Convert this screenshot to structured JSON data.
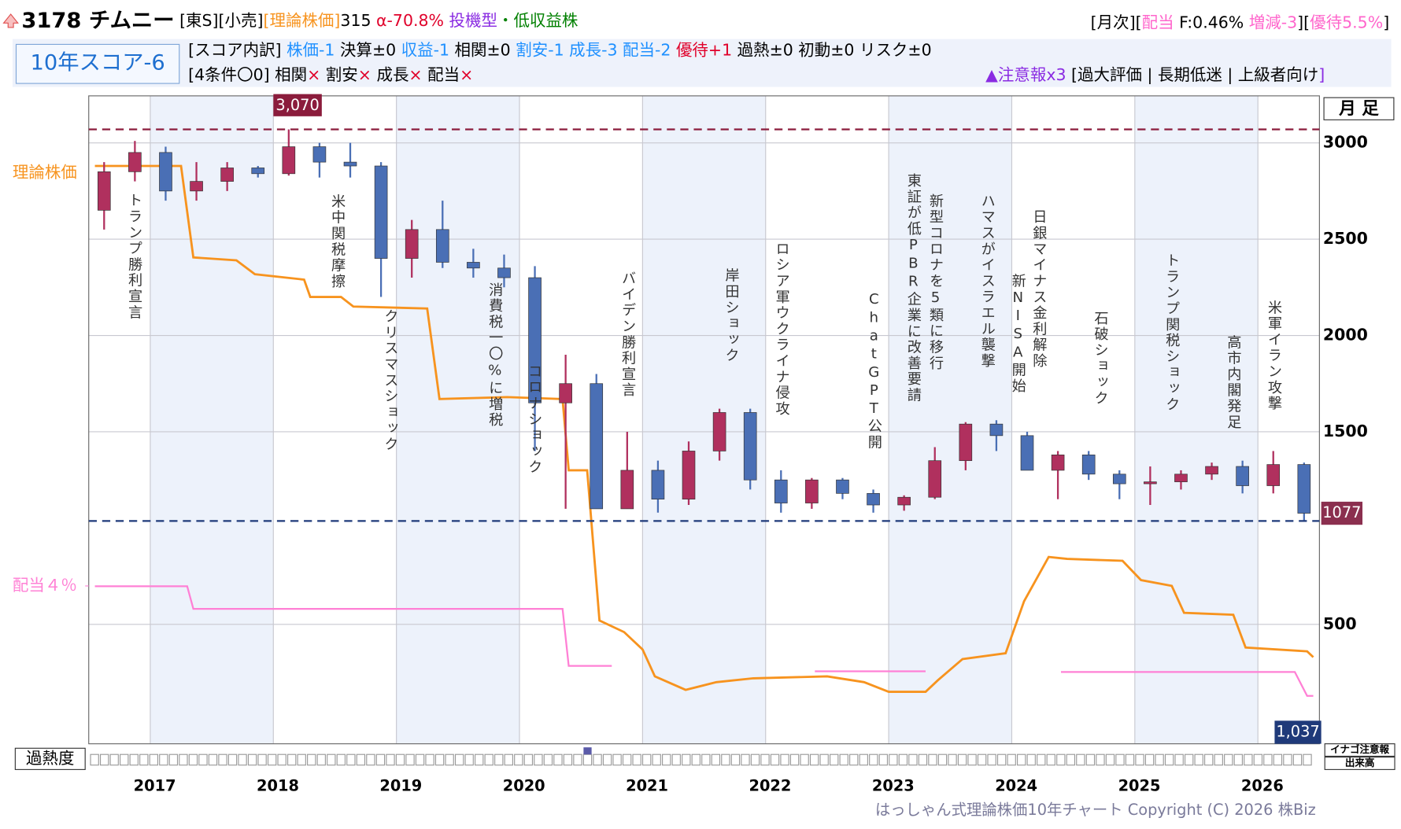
{
  "header": {
    "line1_left": [
      {
        "text": "3178 チムニー",
        "color": "#000000",
        "size": 24,
        "bold": true
      },
      {
        "text": " [東S][小売]",
        "color": "#000000",
        "size": 18
      },
      {
        "text": "[理論株価]",
        "color": "#f7931e",
        "size": 18
      },
      {
        "text": "315 ",
        "color": "#000000",
        "size": 18
      },
      {
        "text": "α-70.8% ",
        "color": "#e0002a",
        "size": 18
      },
      {
        "text": "投機型",
        "color": "#8a2be2",
        "size": 18
      },
      {
        "text": "・低収益株",
        "color": "#008000",
        "size": 18
      }
    ],
    "line1_right": [
      {
        "text": "[月次][",
        "color": "#000000",
        "size": 18
      },
      {
        "text": "配当",
        "color": "#ff66cc",
        "size": 18
      },
      {
        "text": " F:0.46% ",
        "color": "#000000",
        "size": 18
      },
      {
        "text": "増減-3",
        "color": "#ff66cc",
        "size": 18
      },
      {
        "text": "][",
        "color": "#000000",
        "size": 18
      },
      {
        "text": "優待5.5%",
        "color": "#ff66cc",
        "size": 18
      },
      {
        "text": "]",
        "color": "#000000",
        "size": 18
      }
    ],
    "score": "10年スコア-6",
    "line2": [
      {
        "text": "[スコア内訳] ",
        "color": "#000000",
        "size": 18
      },
      {
        "text": "株価-1 ",
        "color": "#1e90ff",
        "size": 18
      },
      {
        "text": "決算±0 ",
        "color": "#000000",
        "size": 18
      },
      {
        "text": "収益-1 ",
        "color": "#1e90ff",
        "size": 18
      },
      {
        "text": "相関±0 ",
        "color": "#000000",
        "size": 18
      },
      {
        "text": "割安-1 ",
        "color": "#1e90ff",
        "size": 18
      },
      {
        "text": "成長-3 ",
        "color": "#1e90ff",
        "size": 18
      },
      {
        "text": "配当-2 ",
        "color": "#1e90ff",
        "size": 18
      },
      {
        "text": "優待+1 ",
        "color": "#e0002a",
        "size": 18
      },
      {
        "text": "過熱±0 初動±0 リスク±0",
        "color": "#000000",
        "size": 18
      }
    ],
    "line3_left": [
      {
        "text": "[4条件〇0] 相関",
        "color": "#000000",
        "size": 18
      },
      {
        "text": "×",
        "color": "#e0002a",
        "size": 18
      },
      {
        "text": " 割安",
        "color": "#000000",
        "size": 18
      },
      {
        "text": "×",
        "color": "#e0002a",
        "size": 18
      },
      {
        "text": " 成長",
        "color": "#000000",
        "size": 18
      },
      {
        "text": "×",
        "color": "#e0002a",
        "size": 18
      },
      {
        "text": " 配当",
        "color": "#000000",
        "size": 18
      },
      {
        "text": "×",
        "color": "#e0002a",
        "size": 18
      }
    ],
    "line3_right": [
      {
        "text": "▲注意報x3",
        "color": "#8a2be2",
        "size": 18
      },
      {
        "text": " [過大評価 | 長期低迷 | 上級者向け",
        "color": "#000000",
        "size": 18
      },
      {
        "text": "]",
        "color": "#8a2be2",
        "size": 18
      }
    ]
  },
  "chart_data": {
    "type": "candlestick",
    "period_label": "月 足",
    "heat_label": "過熱度",
    "side_labels": [
      "イナゴ注意報",
      "出来高"
    ],
    "footer": "はっしゃん式理論株価10年チャート Copyright (C) 2026 株Biz",
    "up_color": "#b0305e",
    "down_color": "#4a6fb5",
    "xlim": [
      2016.5,
      2026.5
    ],
    "xticks": [
      2017,
      2018,
      2019,
      2020,
      2021,
      2022,
      2023,
      2024,
      2025,
      2026
    ],
    "ylim": [
      -120,
      3244
    ],
    "yticks": [
      500,
      1500,
      2000,
      2500,
      3000
    ],
    "y2lim": [
      -0.68,
      18.53
    ],
    "y2ticks": [
      {
        "value": 4,
        "label": "配当４％"
      }
    ],
    "grid": true,
    "candles": {
      "x": [
        2016.625,
        2016.875,
        2017.125,
        2017.375,
        2017.625,
        2017.875,
        2018.125,
        2018.375,
        2018.625,
        2018.875,
        2019.125,
        2019.375,
        2019.625,
        2019.875,
        2020.125,
        2020.375,
        2020.625,
        2020.875,
        2021.125,
        2021.375,
        2021.625,
        2021.875,
        2022.125,
        2022.375,
        2022.625,
        2022.875,
        2023.125,
        2023.375,
        2023.625,
        2023.875,
        2024.125,
        2024.375,
        2024.625,
        2024.875,
        2025.125,
        2025.375,
        2025.625,
        2025.875,
        2026.125,
        2026.375
      ],
      "open": [
        2650,
        2850,
        2950,
        2750,
        2800,
        2870,
        2840,
        2980,
        2900,
        2880,
        2400,
        2550,
        2380,
        2350,
        2300,
        1650,
        1750,
        1100,
        1300,
        1150,
        1400,
        1600,
        1250,
        1130,
        1250,
        1180,
        1120,
        1160,
        1350,
        1540,
        1480,
        1300,
        1380,
        1280,
        1230,
        1240,
        1280,
        1320,
        1220,
        1330
      ],
      "high": [
        2900,
        3010,
        2980,
        2900,
        2900,
        2880,
        3070,
        3000,
        3000,
        2900,
        2600,
        2700,
        2450,
        2420,
        2360,
        1900,
        1800,
        1500,
        1350,
        1450,
        1620,
        1620,
        1300,
        1260,
        1260,
        1200,
        1170,
        1420,
        1550,
        1560,
        1500,
        1400,
        1400,
        1300,
        1320,
        1300,
        1340,
        1350,
        1400,
        1340
      ],
      "low": [
        2550,
        2800,
        2700,
        2700,
        2750,
        2820,
        2830,
        2820,
        2820,
        2200,
        2300,
        2350,
        2300,
        2250,
        1400,
        1100,
        1100,
        1100,
        1080,
        1120,
        1350,
        1200,
        1080,
        1100,
        1150,
        1080,
        1090,
        1150,
        1300,
        1400,
        1350,
        1150,
        1250,
        1150,
        1120,
        1200,
        1250,
        1180,
        1180,
        1037
      ],
      "close": [
        2850,
        2950,
        2750,
        2800,
        2870,
        2840,
        2980,
        2900,
        2880,
        2400,
        2550,
        2380,
        2350,
        2300,
        1650,
        1750,
        1100,
        1300,
        1150,
        1400,
        1600,
        1250,
        1130,
        1250,
        1180,
        1120,
        1160,
        1350,
        1540,
        1480,
        1300,
        1380,
        1280,
        1230,
        1240,
        1280,
        1320,
        1220,
        1330,
        1077
      ]
    },
    "max_line": {
      "value": 3070,
      "label": "3,070",
      "color": "#8b1c3c"
    },
    "min_line": {
      "value": 1037,
      "label": "1,037",
      "color": "#1f3a7a"
    },
    "theory": {
      "name": "理論株価",
      "color": "#f7931e",
      "x": [
        2016.55,
        2017.25,
        2017.35,
        2017.7,
        2017.85,
        2018.25,
        2018.3,
        2018.55,
        2018.65,
        2019.25,
        2019.35,
        2019.9,
        2020.35,
        2020.4,
        2020.55,
        2020.65,
        2020.85,
        2021.0,
        2021.1,
        2021.35,
        2021.6,
        2021.9,
        2022.5,
        2022.8,
        2023.0,
        2023.3,
        2023.4,
        2023.6,
        2023.95,
        2024.1,
        2024.3,
        2024.45,
        2024.9,
        2025.05,
        2025.3,
        2025.4,
        2025.8,
        2025.9,
        2026.4,
        2026.45
      ],
      "values": [
        2880,
        2880,
        2405,
        2390,
        2318,
        2290,
        2200,
        2200,
        2150,
        2140,
        1670,
        1680,
        1670,
        1300,
        1300,
        520,
        460,
        370,
        230,
        160,
        200,
        220,
        230,
        200,
        150,
        150,
        210,
        320,
        350,
        620,
        850,
        840,
        830,
        730,
        700,
        560,
        550,
        380,
        360,
        330
      ]
    },
    "dividend": {
      "color": "#ff80d5",
      "x": [
        2016.55,
        2017.3,
        2017.35,
        2020.35,
        2020.4,
        2020.75,
        2021.0,
        2022.4,
        2023.3,
        2023.9,
        2024.4,
        2026.3,
        2026.4,
        2026.45
      ],
      "values": [
        3.99,
        3.99,
        3.32,
        3.32,
        1.63,
        1.63,
        null,
        1.47,
        1.47,
        null,
        1.45,
        1.45,
        0.74,
        0.74
      ]
    },
    "events": [
      {
        "x": 2016.87,
        "top": 2740,
        "label": "トランプ勝利宣言"
      },
      {
        "x": 2018.52,
        "top": 2735,
        "label": "米中関税摩擦"
      },
      {
        "x": 2018.95,
        "top": 2138,
        "label": "クリスマスショック"
      },
      {
        "x": 2019.8,
        "top": 2276,
        "label": "消費税一〇%に増税"
      },
      {
        "x": 2020.12,
        "top": 1853,
        "label": "コロナショック"
      },
      {
        "x": 2020.88,
        "top": 2336,
        "label": "バイデン勝利宣言"
      },
      {
        "x": 2021.72,
        "top": 2350,
        "label": "岸田ショック"
      },
      {
        "x": 2022.13,
        "top": 2488,
        "label": "ロシア軍ウクライナ侵攻"
      },
      {
        "x": 2022.88,
        "top": 2230,
        "label": "ChatGPT公開"
      },
      {
        "x": 2023.2,
        "top": 2843,
        "label": "東証が低PBR企業に改善要請"
      },
      {
        "x": 2023.38,
        "top": 2737,
        "label": "新型コロナを5類に移行"
      },
      {
        "x": 2023.8,
        "top": 2737,
        "label": "ハマスがイスラエル襲撃"
      },
      {
        "x": 2024.05,
        "top": 2322,
        "label": "新NISA開始"
      },
      {
        "x": 2024.22,
        "top": 2654,
        "label": "日銀マイナス金利解除"
      },
      {
        "x": 2024.72,
        "top": 2129,
        "label": "石破ショック"
      },
      {
        "x": 2025.3,
        "top": 2428,
        "label": "トランプ関税ショック"
      },
      {
        "x": 2025.8,
        "top": 2004,
        "label": "高市内閣発足"
      },
      {
        "x": 2026.13,
        "top": 2184,
        "label": "米軍イラン攻撃"
      }
    ]
  }
}
